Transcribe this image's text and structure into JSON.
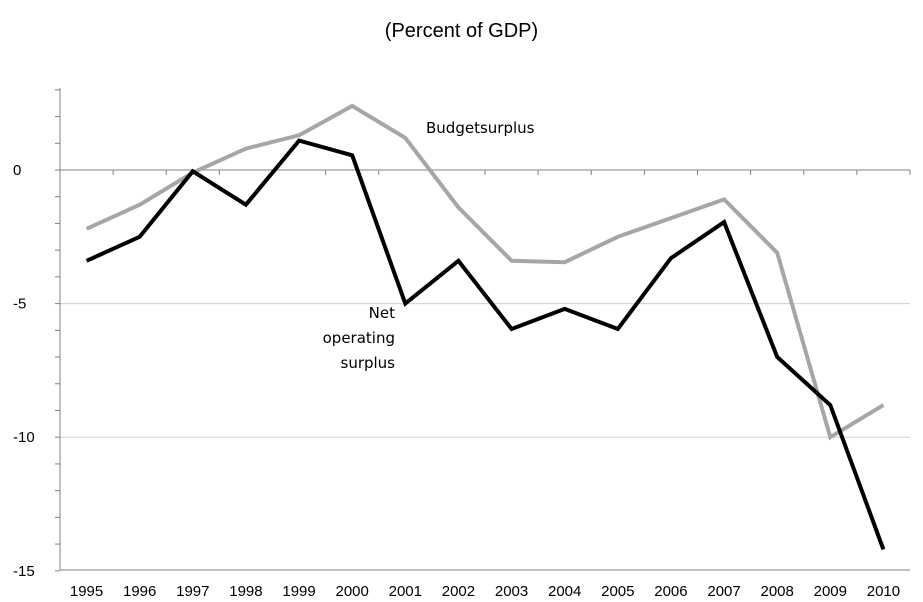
{
  "chart_data": {
    "type": "line",
    "title": "(Percent of GDP)",
    "xlabel": "",
    "ylabel": "",
    "x": [
      "1995",
      "1996",
      "1997",
      "1998",
      "1999",
      "2000",
      "2001",
      "2002",
      "2003",
      "2004",
      "2005",
      "2006",
      "2007",
      "2008",
      "2009",
      "2010"
    ],
    "ylim": [
      -15,
      2.5
    ],
    "yticks": [
      0,
      -5,
      -10,
      -15
    ],
    "grid": true,
    "series": [
      {
        "name": "Budgetsurplus",
        "color": "#a6a6a6",
        "values": [
          -2.2,
          -1.3,
          -0.1,
          0.8,
          1.3,
          2.4,
          1.2,
          -1.4,
          -3.4,
          -3.45,
          -2.5,
          -1.8,
          -1.1,
          -3.1,
          -10.0,
          -8.8
        ]
      },
      {
        "name": "Net operating surplus",
        "color": "#000000",
        "values": [
          -3.4,
          -2.5,
          -0.05,
          -1.3,
          1.1,
          0.55,
          -5.0,
          -3.4,
          -5.95,
          -5.2,
          -5.95,
          -3.3,
          -1.95,
          -7.0,
          -8.8,
          -14.2
        ]
      }
    ],
    "annotations": {
      "budget_label": "Budgetsurplus",
      "net_label_lines": [
        "Net",
        "operating",
        "surplus"
      ]
    }
  }
}
